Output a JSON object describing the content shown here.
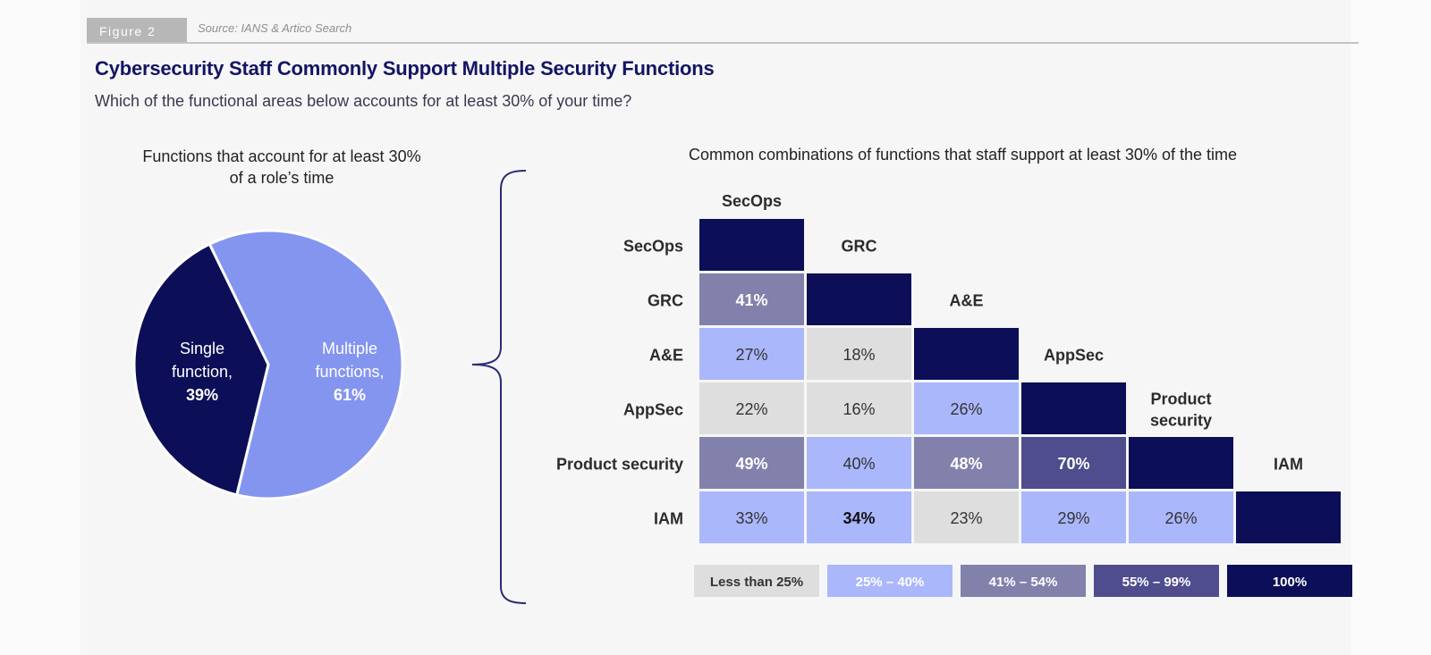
{
  "figure": {
    "label": "Figure 2",
    "source": "Source: IANS & Artico Search"
  },
  "title": "Cybersecurity Staff Commonly Support Multiple Security Functions",
  "subtitle": "Which of the functional areas below accounts for at least 30% of your time?",
  "pie": {
    "caption_line1": "Functions that account for at least 30%",
    "caption_line2": "of a role’s time"
  },
  "matrix": {
    "caption": "Common combinations of functions that staff support at least 30% of the time"
  },
  "colors": {
    "navy": "#0c0f57",
    "light_blue": "#8495f0",
    "less_than_25": "#dedede",
    "p25_40": "#aab7fb",
    "p41_54": "#8281ac",
    "p55_99": "#4f4d8d",
    "p100": "#0c0f57"
  },
  "chart_data": [
    {
      "type": "pie",
      "title": "Functions that account for at least 30% of a role’s time",
      "slices": [
        {
          "label_line1": "Single",
          "label_line2": "function,",
          "percent_label": "39%",
          "value": 39,
          "color": "#0c0f57"
        },
        {
          "label_line1": "Multiple",
          "label_line2": "functions,",
          "percent_label": "61%",
          "value": 61,
          "color": "#8495f0"
        }
      ]
    },
    {
      "type": "heatmap",
      "title": "Common combinations of functions that staff support at least 30% of the time",
      "rows": [
        "SecOps",
        "GRC",
        "A&E",
        "AppSec",
        "Product security",
        "IAM"
      ],
      "diag_labels": [
        [
          "SecOps"
        ],
        [
          "GRC"
        ],
        [
          "A&E"
        ],
        [
          "AppSec"
        ],
        [
          "Product",
          "security"
        ],
        [
          "IAM"
        ]
      ],
      "cells": [
        [
          100
        ],
        [
          41,
          100
        ],
        [
          27,
          18,
          100
        ],
        [
          22,
          16,
          26,
          100
        ],
        [
          49,
          40,
          48,
          70,
          100
        ],
        [
          33,
          34,
          23,
          29,
          26,
          100
        ]
      ],
      "bold_cells": [
        [
          5,
          1
        ]
      ],
      "legend": [
        {
          "label": "Less than 25%",
          "color": "#dedede",
          "text_color": "#333333"
        },
        {
          "label": "25% – 40%",
          "color": "#aab7fb",
          "text_color": "#ffffff"
        },
        {
          "label": "41% – 54%",
          "color": "#8281ac",
          "text_color": "#ffffff"
        },
        {
          "label": "55% – 99%",
          "color": "#4f4d8d",
          "text_color": "#ffffff"
        },
        {
          "label": "100%",
          "color": "#0c0f57",
          "text_color": "#ffffff"
        }
      ]
    }
  ]
}
